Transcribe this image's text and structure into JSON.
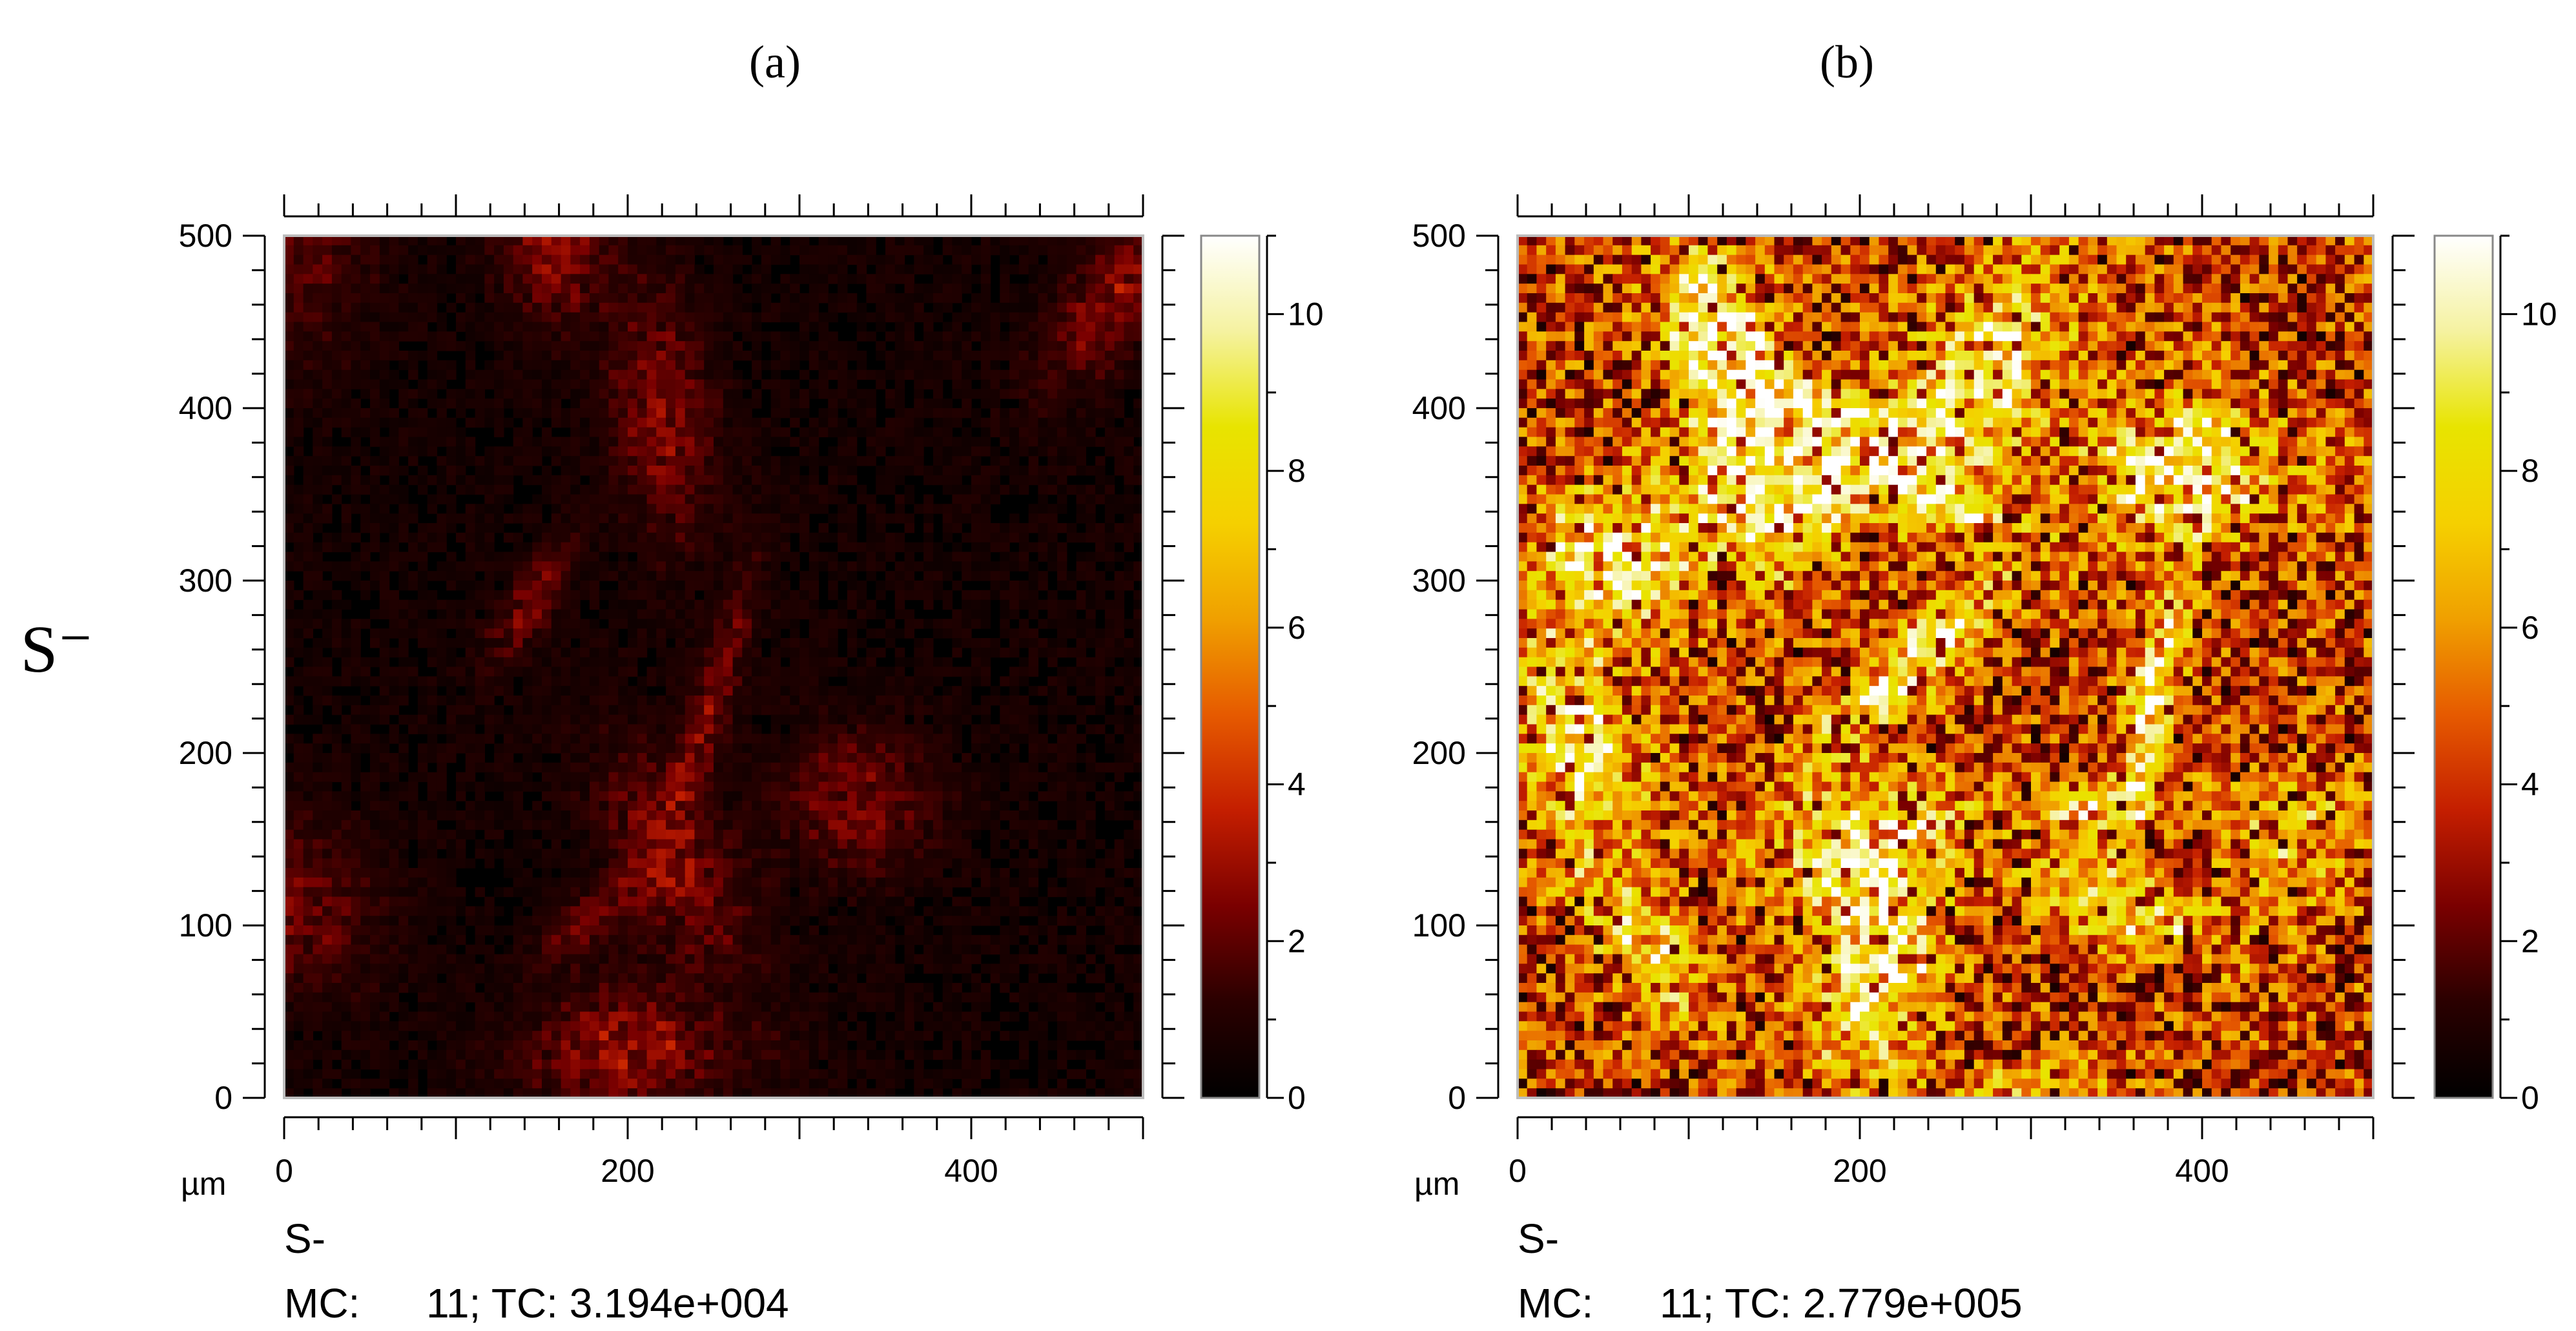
{
  "row_label": "S⁻",
  "colors": {
    "colormap": [
      "#000000",
      "#2a0000",
      "#7a0000",
      "#c41e00",
      "#e65a00",
      "#f0a000",
      "#f5d000",
      "#e8e400",
      "#f5f2a0",
      "#ffffff"
    ],
    "axis": "#000000",
    "text": "#000000"
  },
  "chart_data": [
    {
      "type": "heatmap",
      "panel_label": "(a)",
      "axis_unit": "µm",
      "xlim": [
        0,
        500
      ],
      "ylim": [
        0,
        500
      ],
      "x_ticks": [
        0,
        200,
        400
      ],
      "y_ticks": [
        0,
        100,
        200,
        300,
        400,
        500
      ],
      "colorbar_range": [
        0,
        11
      ],
      "colorbar_ticks": [
        0,
        2,
        4,
        6,
        8,
        10
      ],
      "caption_species": "S-",
      "caption_mc_label": "MC:",
      "caption_mc_value": "11; TC: 3.194e+004",
      "total_counts": 31940,
      "max_counts": 11
    },
    {
      "type": "heatmap",
      "panel_label": "(b)",
      "axis_unit": "µm",
      "xlim": [
        0,
        500
      ],
      "ylim": [
        0,
        500
      ],
      "x_ticks": [
        0,
        200,
        400
      ],
      "y_ticks": [
        0,
        100,
        200,
        300,
        400,
        500
      ],
      "colorbar_range": [
        0,
        11
      ],
      "colorbar_ticks": [
        0,
        2,
        4,
        6,
        8,
        10
      ],
      "caption_species": "S-",
      "caption_mc_label": "MC:",
      "caption_mc_value": "11; TC: 2.779e+005",
      "total_counts": 277900,
      "max_counts": 11
    }
  ]
}
